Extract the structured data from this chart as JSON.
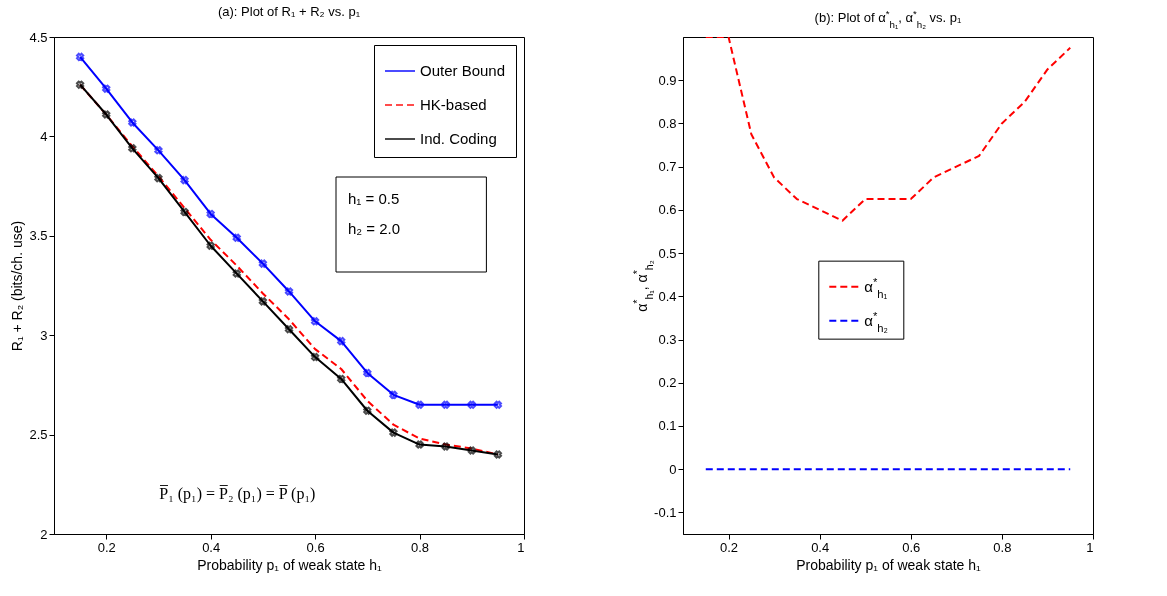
{
  "chart_data": [
    {
      "type": "line",
      "title": "(a): Plot of R₁ + R₂ vs. p₁",
      "xlabel": "Probability p₁ of weak state h₁",
      "ylabel": "R₁ + R₂ (bits/ch. use)",
      "x": [
        0.15,
        0.2,
        0.25,
        0.3,
        0.35,
        0.4,
        0.45,
        0.5,
        0.55,
        0.6,
        0.65,
        0.7,
        0.75,
        0.8,
        0.85,
        0.9,
        0.95
      ],
      "series": [
        {
          "name": "Outer Bound",
          "color": "#0000ff",
          "marker": "cross",
          "line_style": "solid",
          "values": [
            4.4,
            4.24,
            4.07,
            3.93,
            3.78,
            3.61,
            3.49,
            3.36,
            3.22,
            3.07,
            2.97,
            2.81,
            2.7,
            2.65,
            2.65,
            2.65,
            2.65
          ]
        },
        {
          "name": "HK-based",
          "color": "#ff0000",
          "marker": "none",
          "line_style": "dashed",
          "values": [
            4.26,
            4.11,
            3.95,
            3.8,
            3.64,
            3.48,
            3.35,
            3.21,
            3.08,
            2.93,
            2.83,
            2.67,
            2.55,
            2.48,
            2.45,
            2.43,
            2.4
          ]
        },
        {
          "name": "Ind. Coding",
          "color": "#000000",
          "marker": "cross",
          "line_style": "solid",
          "values": [
            4.26,
            4.11,
            3.94,
            3.79,
            3.62,
            3.45,
            3.31,
            3.17,
            3.03,
            2.89,
            2.78,
            2.62,
            2.51,
            2.45,
            2.44,
            2.42,
            2.4
          ]
        }
      ],
      "xlim": [
        0.1,
        1
      ],
      "xticks": [
        0.2,
        0.4,
        0.6,
        0.8,
        1
      ],
      "ylim": [
        2,
        4.5
      ],
      "yticks": [
        2,
        2.5,
        3,
        3.5,
        4,
        4.5
      ],
      "grid": false,
      "legend": "top right",
      "annotations": [
        "h₁ = 0.5",
        "h₂ = 2.0",
        "P̅₁ (p₁) = P̅₂ (p₁) = P̅ (p₁)"
      ]
    },
    {
      "type": "line",
      "title": "(b): Plot of α$^{*}$$_{h₁}$, α$^{*}$$_{h₂}$ vs. p₁",
      "xlabel": "Probability p₁ of weak state h₁",
      "ylabel": "α$^{*}$$_{h₁}$, α$^{*}$$_{h₂}$",
      "x": [
        0.15,
        0.2,
        0.25,
        0.3,
        0.35,
        0.4,
        0.45,
        0.5,
        0.55,
        0.6,
        0.65,
        0.7,
        0.75,
        0.8,
        0.85,
        0.9,
        0.95
      ],
      "series": [
        {
          "name": "α$^{*}$$_{h₁}$",
          "color": "#ff0000",
          "line_style": "dashed",
          "values": [
            1.0,
            1.0,
            0.775,
            0.675,
            0.625,
            0.6,
            0.575,
            0.625,
            0.625,
            0.625,
            0.675,
            0.7,
            0.725,
            0.8,
            0.85,
            0.925,
            0.975
          ]
        },
        {
          "name": "α$^{*}$$_{h₂}$",
          "color": "#0000ff",
          "line_style": "dashed",
          "values": [
            0,
            0,
            0,
            0,
            0,
            0,
            0,
            0,
            0,
            0,
            0,
            0,
            0,
            0,
            0,
            0,
            0
          ]
        }
      ],
      "xlim": [
        0.1,
        1
      ],
      "xticks": [
        0.2,
        0.4,
        0.6,
        0.8,
        1
      ],
      "ylim": [
        -0.15,
        1.0
      ],
      "yticks": [
        -0.1,
        0,
        0.1,
        0.2,
        0.3,
        0.4,
        0.5,
        0.6,
        0.7,
        0.8,
        0.9
      ],
      "grid": false,
      "legend": "center"
    }
  ]
}
